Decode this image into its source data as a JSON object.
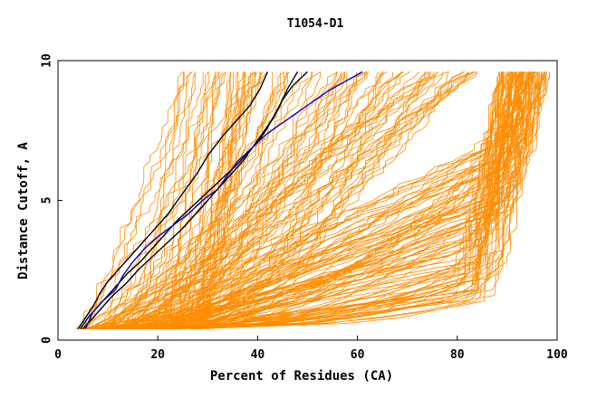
{
  "chart_data": {
    "type": "line",
    "title": "T1054-D1",
    "xlabel": "Percent of Residues (CA)",
    "ylabel": "Distance Cutoff, A",
    "xlim": [
      0,
      100
    ],
    "ylim": [
      0,
      10
    ],
    "xticks": [
      0,
      20,
      40,
      60,
      80,
      100
    ],
    "yticks": [
      0,
      5,
      10
    ],
    "grid": false,
    "legend": "none",
    "colors": {
      "background": "#ffffff",
      "axes": "#000000",
      "models": "#ff8c00",
      "highlight_black": "#000000",
      "highlight_blue": "#0000cc"
    },
    "background_models": {
      "count": 200,
      "x_at_cutoff_0_5": [
        3,
        30
      ],
      "x_at_cutoff_10_range": [
        24,
        98
      ]
    },
    "series": [
      {
        "color": "#000000",
        "x": [
          4.0,
          5.5,
          7.0,
          8.5,
          10.0,
          12.0,
          14.0,
          16.0,
          18.0,
          20.0,
          22.0,
          24.0,
          26.0,
          28.0,
          30.0,
          33.0,
          36.0,
          38.5,
          40.5,
          42.0
        ],
        "y": [
          0.4,
          0.8,
          1.2,
          1.7,
          2.1,
          2.5,
          2.9,
          3.3,
          3.7,
          4.1,
          4.5,
          5.0,
          5.5,
          6.0,
          6.6,
          7.3,
          7.9,
          8.4,
          9.0,
          9.6
        ]
      },
      {
        "color": "#000000",
        "x": [
          4.5,
          6.0,
          8.0,
          10.0,
          12.0,
          14.0,
          16.5,
          19.0,
          21.5,
          24.0,
          27.0,
          30.0,
          33.0,
          36.0,
          38.5,
          40.5,
          42.0,
          43.5,
          45.0,
          47.0,
          50.0
        ],
        "y": [
          0.4,
          0.8,
          1.2,
          1.6,
          2.0,
          2.4,
          2.8,
          3.3,
          3.8,
          4.3,
          4.8,
          5.3,
          5.8,
          6.3,
          6.8,
          7.2,
          7.6,
          8.1,
          8.6,
          9.1,
          9.6
        ]
      },
      {
        "color": "#000000",
        "x": [
          5.0,
          7.0,
          9.0,
          11.0,
          13.5,
          16.0,
          19.0,
          22.0,
          25.0,
          28.0,
          31.0,
          34.0,
          37.0,
          39.0,
          41.0,
          43.0,
          44.5,
          46.0,
          48.0
        ],
        "y": [
          0.4,
          0.8,
          1.2,
          1.6,
          2.0,
          2.5,
          3.0,
          3.5,
          4.0,
          4.6,
          5.2,
          5.8,
          6.4,
          6.9,
          7.4,
          7.9,
          8.4,
          9.0,
          9.6
        ]
      },
      {
        "color": "#0000cc",
        "x": [
          5.5,
          7.0,
          9.0,
          11.5,
          13.0,
          15.0,
          17.5,
          20.0,
          23.0,
          26.0,
          29.0,
          32.0,
          34.0,
          36.0,
          39.0,
          42.0,
          46.0,
          50.0,
          54.0,
          58.0,
          61.0
        ],
        "y": [
          0.4,
          1.0,
          1.4,
          1.8,
          2.3,
          2.8,
          3.3,
          3.7,
          4.1,
          4.5,
          5.0,
          5.4,
          5.9,
          6.4,
          6.9,
          7.4,
          7.9,
          8.4,
          8.9,
          9.3,
          9.6
        ]
      }
    ]
  }
}
